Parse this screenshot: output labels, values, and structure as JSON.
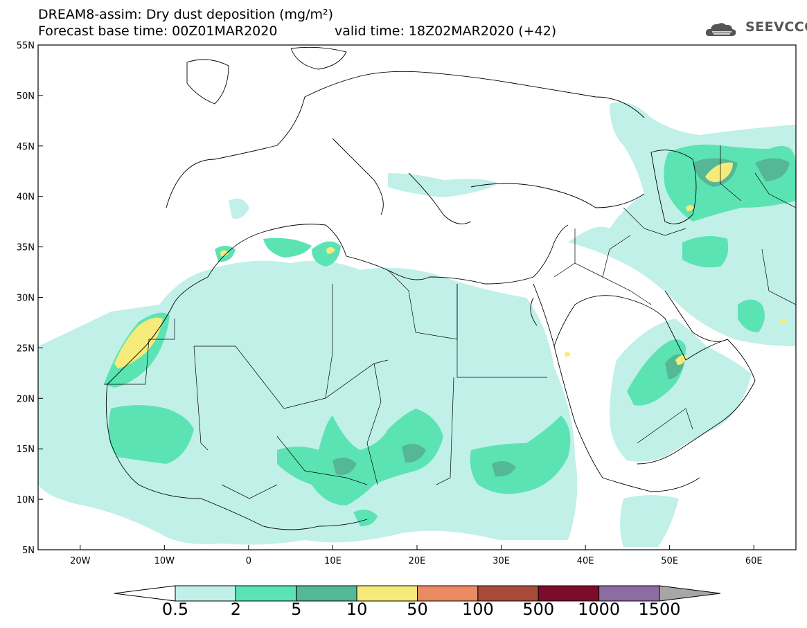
{
  "title": {
    "line1": "DREAM8-assim: Dry dust deposition (mg/m²)",
    "line2": "Forecast base time: 00Z01MAR2020",
    "valid": "valid time: 18Z02MAR2020 (+42)"
  },
  "logo": {
    "text": "SEEVCCC",
    "icon": "cloud-logo-icon"
  },
  "map": {
    "lat_labels": [
      "55N",
      "50N",
      "45N",
      "40N",
      "35N",
      "30N",
      "25N",
      "20N",
      "15N",
      "10N",
      "5N"
    ],
    "lon_labels": [
      "20W",
      "10W",
      "0",
      "10E",
      "20E",
      "30E",
      "40E",
      "50E",
      "60E"
    ],
    "lon_range": [
      -25,
      65
    ],
    "lat_range": [
      5,
      55
    ]
  },
  "colorbar": {
    "labels": [
      "0.5",
      "2",
      "5",
      "10",
      "50",
      "100",
      "500",
      "1000",
      "1500"
    ],
    "colors": [
      "#c1f0e9",
      "#5ce3b4",
      "#54b796",
      "#f5ea7a",
      "#ea8a63",
      "#a84b3b",
      "#7c0b2c",
      "#8d6ca4"
    ],
    "under_color": "#ffffff",
    "over_color": "#a6a6a6"
  },
  "levels": {
    "level1": "#c1f0e9",
    "level2": "#5ce3b4",
    "level3": "#54b796",
    "level4": "#f5ea7a"
  }
}
